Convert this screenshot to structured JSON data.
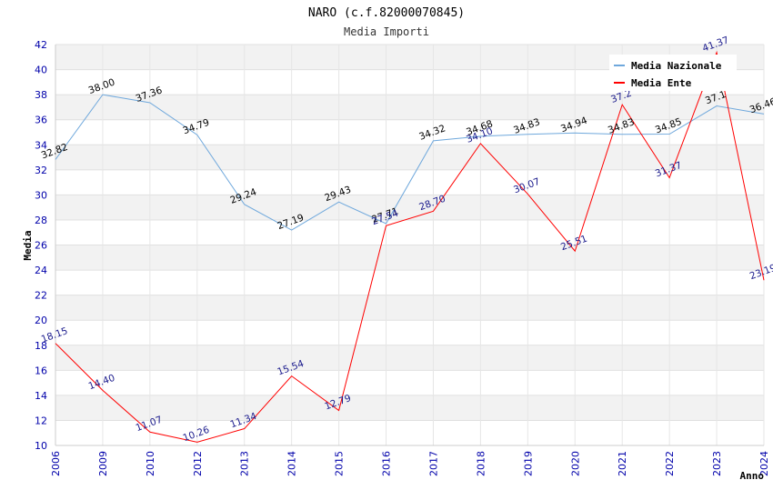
{
  "chart_data": {
    "type": "line",
    "title": "NARO (c.f.82000070845)",
    "subtitle": "Media Importi",
    "xlabel": "Anno",
    "ylabel": "Media",
    "ylim": [
      10,
      42
    ],
    "y_ticks": [
      10,
      12,
      14,
      16,
      18,
      20,
      22,
      24,
      26,
      28,
      30,
      32,
      34,
      36,
      38,
      40,
      42
    ],
    "categories": [
      "2006",
      "2009",
      "2010",
      "2012",
      "2013",
      "2014",
      "2015",
      "2016",
      "2017",
      "2018",
      "2019",
      "2020",
      "2021",
      "2022",
      "2023",
      "2024"
    ],
    "grid": true,
    "legend_position": "top-right",
    "series": [
      {
        "name": "Media Nazionale",
        "color": "#6fa8dc",
        "values": [
          32.82,
          38.0,
          37.36,
          34.79,
          29.24,
          27.19,
          29.43,
          27.71,
          34.32,
          34.68,
          34.83,
          34.94,
          34.83,
          34.85,
          37.1,
          36.46
        ],
        "labels": [
          "32.82",
          "38.00",
          "37.36",
          "34.79",
          "29.24",
          "27.19",
          "29.43",
          "27.71",
          "34.32",
          "34.68",
          "34.83",
          "34.94",
          "34.83",
          "34.85",
          "37.1",
          "36.46"
        ]
      },
      {
        "name": "Media Ente",
        "color": "#ff0000",
        "values": [
          18.15,
          14.4,
          11.07,
          10.26,
          11.34,
          15.54,
          12.79,
          27.54,
          28.7,
          34.1,
          30.07,
          25.51,
          37.2,
          31.37,
          41.37,
          23.19
        ],
        "labels": [
          "18.15",
          "14.40",
          "11.07",
          "10.26",
          "11.34",
          "15.54",
          "12.79",
          "27.54",
          "28.70",
          "34.10",
          "30.07",
          "25.51",
          "37.2",
          "31.37",
          "41.37",
          "23.19"
        ]
      }
    ]
  }
}
